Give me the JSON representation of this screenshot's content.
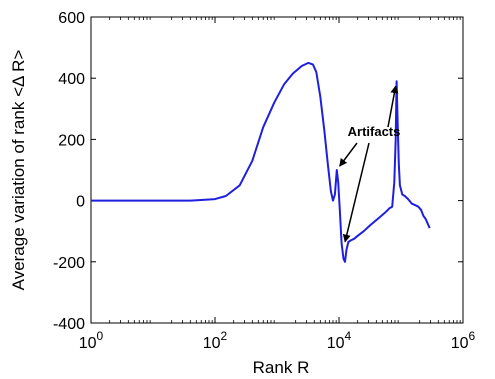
{
  "chart_data": {
    "type": "line",
    "title": "",
    "xlabel": "Rank R",
    "ylabel": "Average variation of rank <Δ R>",
    "xscale": "log",
    "xlim": [
      1,
      1000000
    ],
    "ylim": [
      -400,
      600
    ],
    "grid": false,
    "x_tick_labels": [
      {
        "base": "10",
        "exp": "0",
        "value": 1
      },
      {
        "base": "10",
        "exp": "2",
        "value": 100
      },
      {
        "base": "10",
        "exp": "4",
        "value": 10000
      },
      {
        "base": "10",
        "exp": "6",
        "value": 1000000
      }
    ],
    "y_ticks": [
      -400,
      -200,
      0,
      200,
      400,
      600
    ],
    "y_tick_labels": [
      "-400",
      "-200",
      "0",
      "200",
      "400",
      "600"
    ],
    "color": "#1f1fdf",
    "series": [
      {
        "points": [
          [
            1,
            0
          ],
          [
            10,
            0
          ],
          [
            40,
            0
          ],
          [
            60,
            2
          ],
          [
            100,
            5
          ],
          [
            150,
            15
          ],
          [
            250,
            50
          ],
          [
            400,
            130
          ],
          [
            600,
            240
          ],
          [
            900,
            320
          ],
          [
            1300,
            380
          ],
          [
            1800,
            415
          ],
          [
            2500,
            440
          ],
          [
            3200,
            450
          ],
          [
            3800,
            445
          ],
          [
            4300,
            420
          ],
          [
            5000,
            340
          ],
          [
            5800,
            230
          ],
          [
            6600,
            120
          ],
          [
            7400,
            30
          ],
          [
            8000,
            0
          ],
          [
            8600,
            20
          ],
          [
            9200,
            100
          ],
          [
            9700,
            60
          ],
          [
            10300,
            -30
          ],
          [
            11000,
            -140
          ],
          [
            11800,
            -190
          ],
          [
            12500,
            -200
          ],
          [
            13200,
            -160
          ],
          [
            14200,
            -135
          ],
          [
            15500,
            -130
          ],
          [
            17500,
            -125
          ],
          [
            20000,
            -115
          ],
          [
            25000,
            -100
          ],
          [
            32000,
            -80
          ],
          [
            42000,
            -60
          ],
          [
            55000,
            -40
          ],
          [
            65000,
            -25
          ],
          [
            72000,
            -20
          ],
          [
            78000,
            60
          ],
          [
            82000,
            200
          ],
          [
            85000,
            390
          ],
          [
            88000,
            260
          ],
          [
            92000,
            120
          ],
          [
            96000,
            50
          ],
          [
            105000,
            20
          ],
          [
            115000,
            15
          ],
          [
            130000,
            5
          ],
          [
            150000,
            -10
          ],
          [
            170000,
            -15
          ],
          [
            190000,
            -20
          ],
          [
            210000,
            -30
          ],
          [
            230000,
            -50
          ],
          [
            250000,
            -60
          ],
          [
            270000,
            -75
          ],
          [
            290000,
            -90
          ]
        ]
      }
    ],
    "annotations": [
      {
        "text": "Artifacts",
        "arrows_to": [
          [
            9200,
            100
          ],
          [
            12000,
            -150
          ],
          [
            85000,
            390
          ]
        ]
      }
    ]
  }
}
